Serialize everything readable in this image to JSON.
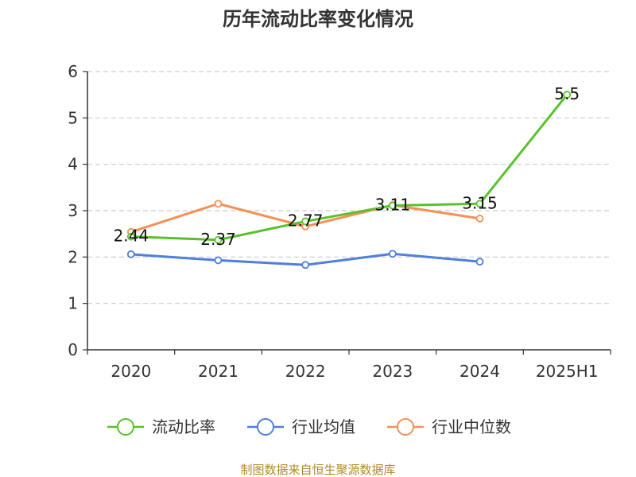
{
  "chart_data": {
    "type": "line",
    "title": "历年流动比率变化情况",
    "categories": [
      "2020",
      "2021",
      "2022",
      "2023",
      "2024",
      "2025H1"
    ],
    "ylim": [
      0,
      6
    ],
    "yticks": [
      "0",
      "1",
      "2",
      "3",
      "4",
      "5",
      "6"
    ],
    "grid": true,
    "legend_position": "bottom",
    "series": [
      {
        "name": "流动比率",
        "color": "#5ac12e",
        "values": [
          2.44,
          2.37,
          2.77,
          3.11,
          3.15,
          5.5
        ],
        "labels": [
          "2.44",
          "2.37",
          "2.77",
          "3.11",
          "3.15",
          "5.5"
        ]
      },
      {
        "name": "行业均值",
        "color": "#4f7fdb",
        "values": [
          2.06,
          1.93,
          1.83,
          2.07,
          1.9,
          null
        ]
      },
      {
        "name": "行业中位数",
        "color": "#f59157",
        "values": [
          2.54,
          3.15,
          2.66,
          3.12,
          2.83,
          null
        ]
      }
    ],
    "source": "制图数据来自恒生聚源数据库"
  }
}
